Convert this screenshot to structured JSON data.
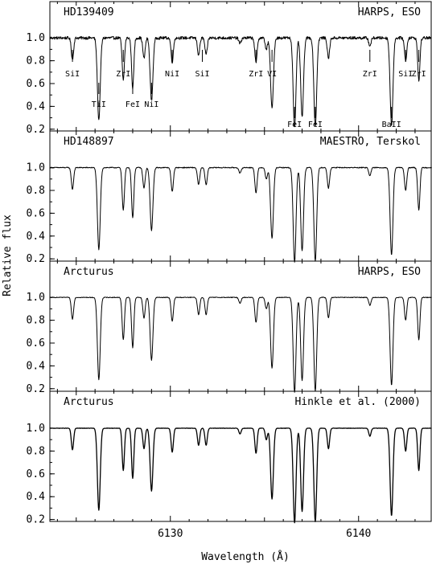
{
  "figure": {
    "xlabel": "Wavelength (Å)",
    "ylabel": "Relative flux"
  },
  "chart_data": {
    "type": "line",
    "xlim": [
      6123.6,
      6143.9
    ],
    "ylim": [
      0.0,
      1.09
    ],
    "x_ticks": [
      6130,
      6140
    ],
    "y_ticks": [
      0.2,
      0.4,
      0.6,
      0.8,
      1.0
    ],
    "grid": false,
    "panels": [
      {
        "left_label": "HD139409",
        "right_label": "HARPS, ESO",
        "noise": 0.008,
        "noisy": true
      },
      {
        "left_label": "HD148897",
        "right_label": "MAESTRO, Terskol",
        "noise": 0.004,
        "noisy": false
      },
      {
        "left_label": "Arcturus",
        "right_label": "HARPS, ESO",
        "noise": 0.003,
        "noisy": false
      },
      {
        "left_label": "Arcturus",
        "right_label": "Hinkle et al. (2000)",
        "noise": 0.0015,
        "noisy": false
      }
    ],
    "absorption_lines": [
      {
        "x": 6124.8,
        "depth": 0.19
      },
      {
        "x": 6126.2,
        "depth": 0.72
      },
      {
        "x": 6127.5,
        "depth": 0.37
      },
      {
        "x": 6128.0,
        "depth": 0.44
      },
      {
        "x": 6128.6,
        "depth": 0.18
      },
      {
        "x": 6129.0,
        "depth": 0.55
      },
      {
        "x": 6130.1,
        "depth": 0.21
      },
      {
        "x": 6131.5,
        "depth": 0.15
      },
      {
        "x": 6131.9,
        "depth": 0.15
      },
      {
        "x": 6133.7,
        "depth": 0.05
      },
      {
        "x": 6134.55,
        "depth": 0.22
      },
      {
        "x": 6135.1,
        "depth": 0.1
      },
      {
        "x": 6135.4,
        "depth": 0.62
      },
      {
        "x": 6136.6,
        "depth": 0.83
      },
      {
        "x": 6137.0,
        "depth": 0.73
      },
      {
        "x": 6137.7,
        "depth": 0.82
      },
      {
        "x": 6138.4,
        "depth": 0.18
      },
      {
        "x": 6140.6,
        "depth": 0.07
      },
      {
        "x": 6141.75,
        "depth": 0.77
      },
      {
        "x": 6142.5,
        "depth": 0.2
      },
      {
        "x": 6143.2,
        "depth": 0.37
      }
    ],
    "line_ids": [
      {
        "x": 6124.8,
        "label": "SiI",
        "row": "upper"
      },
      {
        "x": 6126.2,
        "label": "TiI",
        "row": "lower"
      },
      {
        "x": 6127.5,
        "label": "ZrI",
        "row": "upper"
      },
      {
        "x": 6128.0,
        "label": "FeI",
        "row": "lower"
      },
      {
        "x": 6129.0,
        "label": "NiI",
        "row": "lower"
      },
      {
        "x": 6130.1,
        "label": "NiI",
        "row": "upper"
      },
      {
        "x": 6131.7,
        "label": "SiI",
        "row": "upper"
      },
      {
        "x": 6134.55,
        "label": "ZrI",
        "row": "upper"
      },
      {
        "x": 6135.4,
        "label": "VI",
        "row": "upper"
      },
      {
        "x": 6136.6,
        "label": "FeI",
        "row": "bottom"
      },
      {
        "x": 6137.7,
        "label": "FeI",
        "row": "bottom"
      },
      {
        "x": 6140.6,
        "label": "ZrI",
        "row": "upper"
      },
      {
        "x": 6141.75,
        "label": "BaII",
        "row": "bottom"
      },
      {
        "x": 6142.5,
        "label": "SiI",
        "row": "upper"
      },
      {
        "x": 6143.2,
        "label": "ZrI",
        "row": "upper"
      }
    ]
  }
}
